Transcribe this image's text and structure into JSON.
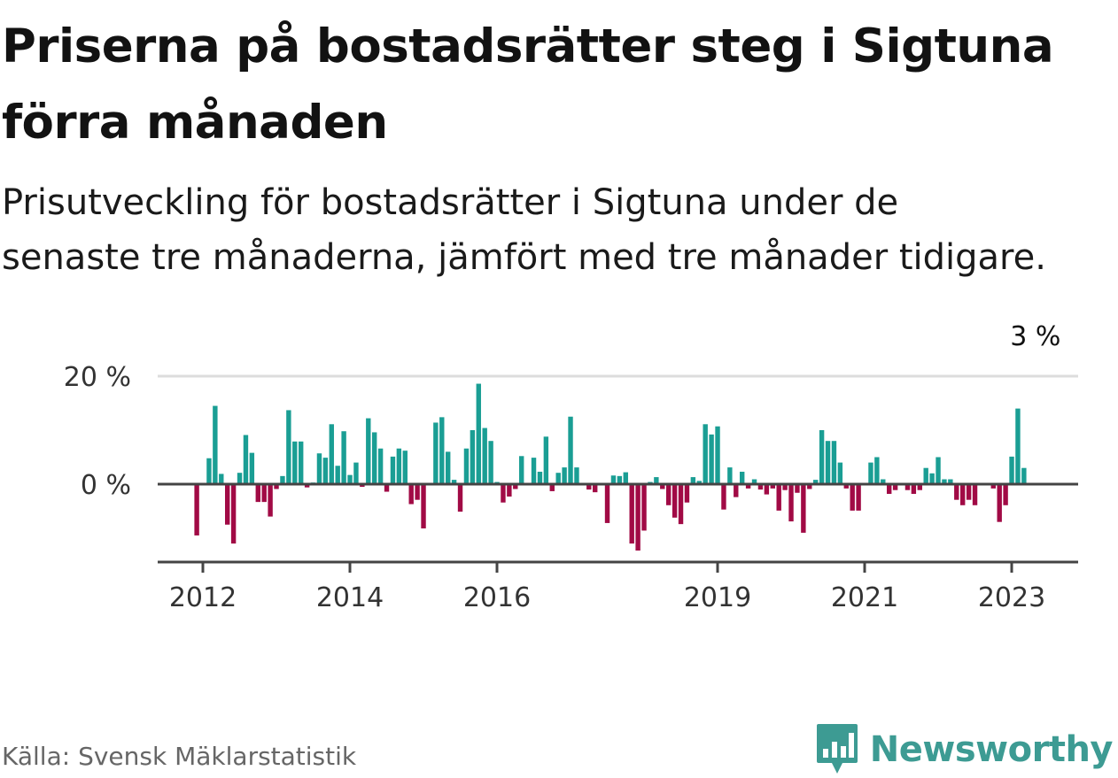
{
  "title": "Priserna på bostadsrätter steg i Sigtuna förra månaden",
  "subtitle": "Prisutveckling för bostadsrätter i Sigtuna under de senaste tre månaderna, jämfört med tre månader tidigare.",
  "source": "Källa: Svensk Mäklarstatistik",
  "brand": {
    "name": "Newsworthy",
    "icon": "newsworthy-logo-icon"
  },
  "colors": {
    "positive": "#1a9e94",
    "negative": "#a10a45",
    "grid": "#dddddd",
    "axis": "#444444",
    "brand": "#3d9b93"
  },
  "chart_data": {
    "type": "bar",
    "title": "Priserna på bostadsrätter steg i Sigtuna förra månaden",
    "xlabel": "",
    "ylabel": "",
    "y_unit": "%",
    "ylim": [
      -14,
      20
    ],
    "yticks": [
      {
        "value": 0,
        "label": "0 %"
      },
      {
        "value": 20,
        "label": "20 %"
      }
    ],
    "xticks": [
      {
        "x": 2012,
        "label": "2012"
      },
      {
        "x": 2014,
        "label": "2014"
      },
      {
        "x": 2016,
        "label": "2016"
      },
      {
        "x": 2019,
        "label": "2019"
      },
      {
        "x": 2021,
        "label": "2021"
      },
      {
        "x": 2023,
        "label": "2023"
      }
    ],
    "x_start": 2011.917,
    "period": "month",
    "annotation": {
      "index": 136,
      "label": "3 %"
    },
    "values": [
      -9.5,
      0,
      4.8,
      14.5,
      1.9,
      -7.5,
      -11,
      2.1,
      9.1,
      5.8,
      -3.3,
      -3.3,
      -6,
      -0.9,
      1.5,
      13.7,
      7.9,
      7.9,
      -0.6,
      0.3,
      5.7,
      4.9,
      11.1,
      3.4,
      9.8,
      1.7,
      4,
      -0.5,
      12.2,
      9.6,
      6.6,
      -1.4,
      5.1,
      6.6,
      6.2,
      -3.7,
      -2.9,
      -8.2,
      0,
      11.4,
      12.4,
      6,
      0.8,
      -5.1,
      6.6,
      10,
      18.6,
      10.4,
      8,
      0.4,
      -3.4,
      -2.3,
      -0.9,
      5.2,
      0,
      4.9,
      2.3,
      8.8,
      -1.3,
      2.1,
      3.1,
      12.5,
      3.1,
      0,
      -1,
      -1.5,
      0,
      -7.2,
      1.6,
      1.5,
      2.2,
      -11,
      -12.3,
      -8.6,
      0.4,
      1.3,
      -0.9,
      -3.9,
      -6.2,
      -7.4,
      -3.4,
      1.3,
      0.6,
      11.1,
      9.2,
      10.7,
      -4.7,
      3.1,
      -2.4,
      2.3,
      -0.8,
      0.9,
      -1,
      -1.9,
      -0.8,
      -4.9,
      -1.1,
      -6.9,
      -1.6,
      -9,
      -0.9,
      0.8,
      10,
      8,
      8,
      4,
      -0.8,
      -4.9,
      -4.9,
      0,
      4,
      5,
      0.9,
      -1.8,
      -1.1,
      0,
      -1.1,
      -1.8,
      -1.1,
      3,
      2,
      5,
      0.9,
      0.9,
      -2.9,
      -3.9,
      -2.9,
      -3.9,
      0,
      0,
      -0.8,
      -7,
      -3.9,
      5.1,
      14,
      3
    ]
  }
}
